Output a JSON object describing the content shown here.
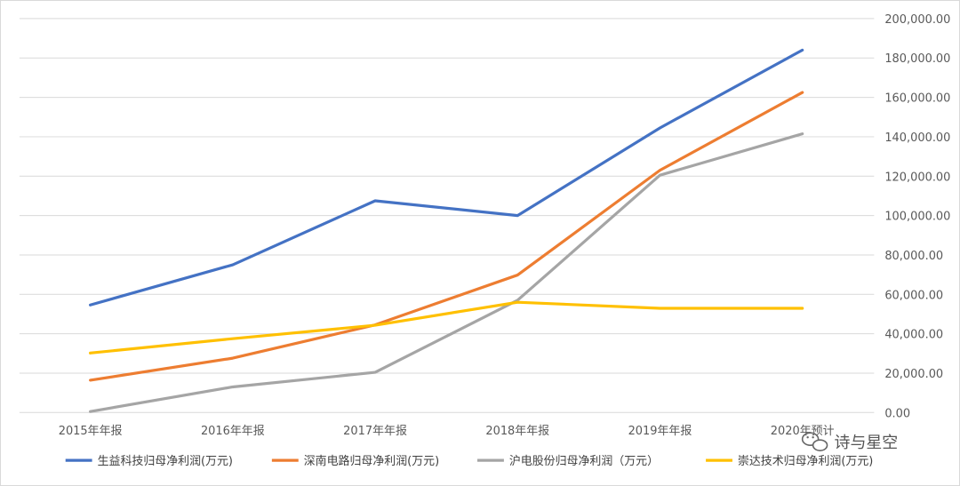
{
  "chart_data": {
    "type": "line",
    "categories": [
      "2015年年报",
      "2016年年报",
      "2017年年报",
      "2018年年报",
      "2019年年报",
      "2020年预计"
    ],
    "series": [
      {
        "name": "生益科技归母净利润(万元)",
        "color": "#4472c4",
        "values": [
          54600,
          75000,
          107500,
          100000,
          144500,
          184000
        ]
      },
      {
        "name": "深南电路归母净利润(万元)",
        "color": "#ed7d31",
        "values": [
          16400,
          27600,
          44500,
          69800,
          123000,
          162500
        ]
      },
      {
        "name": "沪电股份归母净利润（万元）",
        "color": "#a5a5a5",
        "values": [
          500,
          13000,
          20400,
          57000,
          120500,
          141500
        ]
      },
      {
        "name": "崇达技术归母净利润(万元)",
        "color": "#ffc000",
        "values": [
          30200,
          37500,
          44300,
          56000,
          52900,
          52900
        ]
      }
    ],
    "y_ticks": [
      "0.00",
      "20,000.00",
      "40,000.00",
      "60,000.00",
      "80,000.00",
      "100,000.00",
      "120,000.00",
      "140,000.00",
      "160,000.00",
      "180,000.00",
      "200,000.00"
    ],
    "ylim": [
      0,
      200000
    ],
    "grid": "horizontal",
    "y_axis_position": "right",
    "legend_position": "bottom"
  },
  "watermark": {
    "text": "诗与星空",
    "icon": "wechat-icon"
  }
}
